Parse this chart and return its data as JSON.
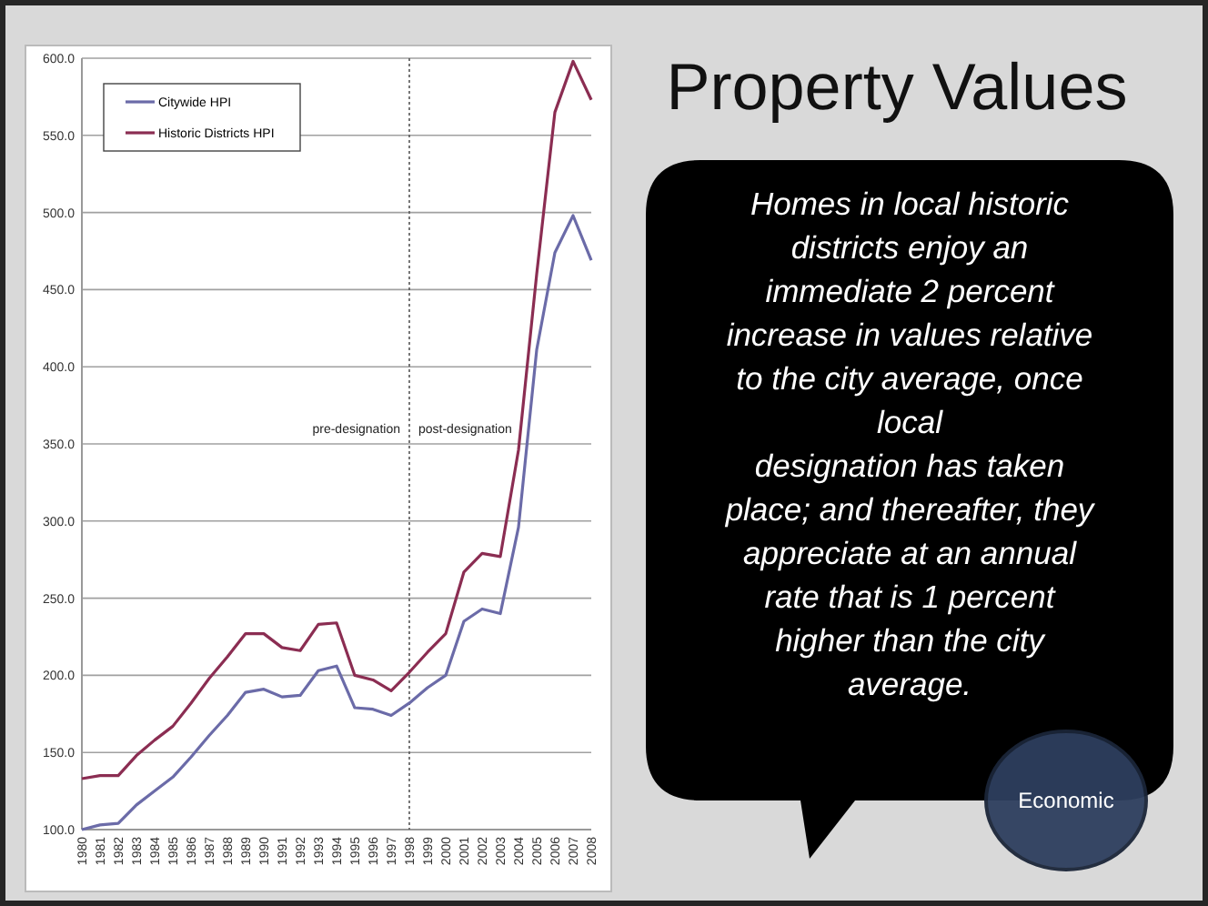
{
  "chart_data": {
    "type": "line",
    "title": "Property Values",
    "categories": [
      "1980",
      "1981",
      "1982",
      "1983",
      "1984",
      "1985",
      "1986",
      "1987",
      "1988",
      "1989",
      "1990",
      "1991",
      "1992",
      "1993",
      "1994",
      "1995",
      "1996",
      "1997",
      "1998",
      "1999",
      "2000",
      "2001",
      "2002",
      "2003",
      "2004",
      "2005",
      "2006",
      "2007",
      "2008"
    ],
    "series": [
      {
        "name": "Citywide HPI",
        "color": "#6b6ba8",
        "values": [
          100,
          103,
          104,
          116,
          125,
          134,
          147,
          161,
          174,
          189,
          191,
          186,
          187,
          203,
          206,
          179,
          178,
          174,
          182,
          192,
          200,
          235,
          243,
          240,
          296,
          411,
          474,
          498,
          469
        ]
      },
      {
        "name": "Historic Districts HPI",
        "color": "#8b2d52",
        "values": [
          133,
          135,
          135,
          148,
          158,
          167,
          182,
          198,
          212,
          227,
          227,
          218,
          216,
          233,
          234,
          200,
          197,
          190,
          202,
          215,
          227,
          267,
          279,
          277,
          346,
          460,
          565,
          598,
          573
        ]
      }
    ],
    "ylim": [
      100,
      600
    ],
    "yticks": [
      {
        "value": 100,
        "label": "100.0"
      },
      {
        "value": 150,
        "label": "150.0"
      },
      {
        "value": 200,
        "label": "200.0"
      },
      {
        "value": 250,
        "label": "250.0"
      },
      {
        "value": 300,
        "label": "300.0"
      },
      {
        "value": 350,
        "label": "350.0"
      },
      {
        "value": 400,
        "label": "400.0"
      },
      {
        "value": 450,
        "label": "450.0"
      },
      {
        "value": 500,
        "label": "500.0"
      },
      {
        "value": 550,
        "label": "550.0"
      },
      {
        "value": 600,
        "label": "600.0"
      }
    ],
    "grid": "y",
    "legend": "top left",
    "marker": "none",
    "line_style": "solid",
    "ref_lines": [
      {
        "axis": "x",
        "value": "1998",
        "line_style": "dotted",
        "color": "#555555"
      }
    ],
    "annotations": [
      "pre-designation",
      "post-designation",
      "Homes in local historic\ndistricts enjoy an\nimmediate 2 percent\nincrease in values relative\nto the city average, once\nlocal\ndesignation has taken\nplace; and thereafter, they\nappreciate at an annual\nrate that is 1 percent\nhigher than the city\naverage.",
      "Economic"
    ]
  }
}
